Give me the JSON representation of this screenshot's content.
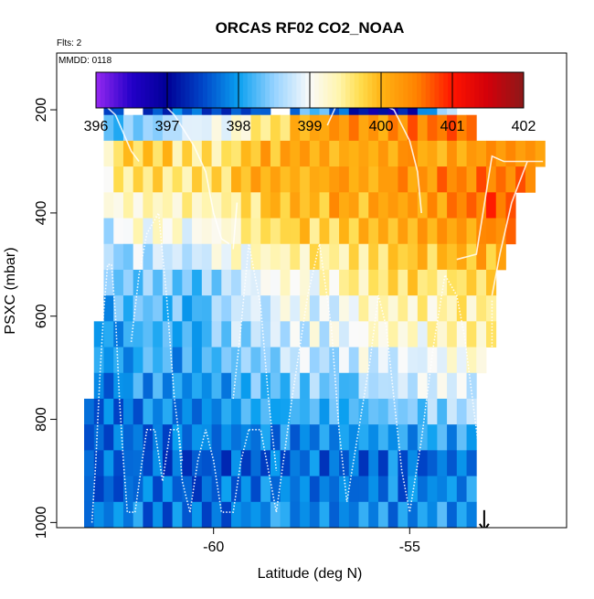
{
  "chart_data": {
    "type": "heatmap",
    "title": "ORCAS RF02 CO2_NOAA",
    "flights_note": "Flts: 2",
    "date_note": "MMDD: 0118",
    "xlabel": "Latitude (deg N)",
    "ylabel": "PSXC (mbar)",
    "xlim": [
      -64.0,
      -51.0
    ],
    "ylim": [
      1010,
      90
    ],
    "x_ticks": [
      -60,
      -55
    ],
    "x_tick_labels": [
      "-60",
      "-55"
    ],
    "y_ticks": [
      200,
      400,
      600,
      800,
      1000
    ],
    "y_tick_labels": [
      "200",
      "400",
      "600",
      "800",
      "1000"
    ],
    "colorbar": {
      "min": 396,
      "max": 402,
      "ticks": [
        396,
        397,
        398,
        399,
        400,
        401,
        402
      ],
      "tick_labels": [
        "396",
        "397",
        "398",
        "399",
        "400",
        "401",
        "402"
      ]
    },
    "grid": {
      "lat_start": -63.3,
      "lat_step": 0.25,
      "lat_end": -51.5,
      "pressure_levels": [
        185,
        235,
        285,
        335,
        385,
        435,
        485,
        535,
        585,
        635,
        685,
        735,
        785,
        835,
        885,
        935,
        985
      ],
      "level_bounds": [
        [
          -62.8,
          -53.7
        ],
        [
          -62.8,
          -53.2
        ],
        [
          -62.8,
          -51.6
        ],
        [
          -62.8,
          -51.9
        ],
        [
          -62.8,
          -52.2
        ],
        [
          -62.8,
          -52.3
        ],
        [
          -62.8,
          -52.6
        ],
        [
          -62.8,
          -52.9
        ],
        [
          -62.8,
          -52.9
        ],
        [
          -63.0,
          -52.9
        ],
        [
          -63.0,
          -53.0
        ],
        [
          -63.0,
          -53.2
        ],
        [
          -63.2,
          -53.2
        ],
        [
          -63.3,
          -53.3
        ],
        [
          -63.3,
          -53.3
        ],
        [
          -63.3,
          -53.3
        ],
        [
          -63.3,
          -53.3
        ]
      ],
      "values": [
        [
          397.9,
          397.1,
          397.6,
          397.5,
          397.4,
          398.3,
          397.0,
          397.0,
          398.9,
          400.1,
          399.6
        ],
        [
          397.9,
          398.3,
          398.6,
          398.9,
          399.4,
          400.0,
          400.3,
          400.2,
          400.6,
          400.5,
          400.4,
          400.3
        ],
        [
          398.5,
          399.6,
          399.8,
          399.6,
          399.6,
          400.0,
          400.1,
          400.1,
          400.1,
          400.1,
          400.1,
          400.3,
          400.3,
          400.4
        ],
        [
          398.4,
          399.5,
          399.7,
          399.6,
          399.8,
          400.0,
          400.1,
          400.1,
          400.2,
          400.3,
          400.4,
          400.5,
          400.6,
          400.7
        ],
        [
          398.2,
          399.3,
          399.4,
          399.3,
          399.5,
          399.7,
          399.9,
          400.1,
          400.1,
          400.3,
          400.3,
          400.6,
          400.7,
          400.9
        ],
        [
          398.0,
          399.0,
          399.2,
          399.0,
          399.2,
          399.5,
          399.8,
          399.8,
          399.9,
          400.0,
          400.1,
          400.3,
          400.6,
          400.8
        ],
        [
          397.9,
          398.6,
          398.8,
          398.6,
          399.0,
          399.3,
          399.5,
          399.4,
          399.7,
          399.8,
          399.9,
          400.0,
          400.1,
          400.2
        ],
        [
          397.9,
          398.3,
          398.6,
          398.3,
          398.7,
          399.0,
          399.2,
          399.1,
          399.5,
          399.6,
          399.6,
          399.7,
          399.9,
          400.1
        ],
        [
          397.9,
          398.2,
          398.4,
          398.1,
          398.6,
          398.9,
          399.0,
          398.8,
          399.3,
          399.4,
          399.4,
          399.5,
          399.7,
          400.0
        ],
        [
          397.9,
          398.1,
          398.3,
          398.1,
          398.5,
          398.7,
          398.9,
          398.8,
          399.1,
          399.2,
          399.2,
          399.4,
          399.6,
          399.8
        ],
        [
          397.8,
          398.0,
          398.2,
          398.0,
          398.3,
          398.5,
          398.7,
          398.6,
          398.9,
          399.0,
          399.0,
          399.2,
          399.4,
          399.6
        ],
        [
          397.7,
          397.9,
          398.0,
          397.9,
          398.1,
          398.3,
          398.4,
          398.4,
          398.6,
          398.7,
          398.8,
          398.9,
          399.0,
          399.3
        ],
        [
          397.7,
          397.8,
          397.9,
          397.8,
          398.0,
          398.1,
          398.2,
          398.2,
          398.3,
          398.4,
          398.5,
          398.6,
          398.7,
          398.9
        ],
        [
          397.6,
          397.7,
          397.7,
          397.7,
          397.8,
          397.9,
          397.9,
          397.9,
          398.0,
          398.0,
          398.1,
          398.1,
          398.2,
          398.4
        ],
        [
          397.6,
          397.7,
          397.6,
          397.6,
          397.6,
          397.7,
          397.7,
          397.7,
          397.7,
          397.8,
          397.8,
          397.8,
          397.9,
          398.0
        ],
        [
          397.6,
          397.7,
          397.7,
          397.6,
          397.7,
          397.8,
          397.8,
          397.7,
          397.8,
          397.8,
          397.9,
          397.9,
          397.9,
          398.0
        ],
        [
          397.7,
          397.8,
          397.8,
          397.7,
          397.8,
          397.9,
          397.9,
          397.8,
          397.9,
          397.9,
          398.0,
          398.0,
          398.0,
          398.0
        ]
      ]
    },
    "gaps": [
      [
        -62.3,
        -61.8,
        160,
        210
      ],
      [
        -58.5,
        -58.1,
        160,
        210
      ]
    ],
    "flight_track_solid": [
      [
        [
          -63.0,
          175
        ],
        [
          -62.5,
          210
        ],
        [
          -62.1,
          280
        ],
        [
          -61.9,
          300
        ]
      ],
      [
        [
          -62.2,
          175
        ],
        [
          -61.8,
          180
        ],
        [
          -61.4,
          180
        ],
        [
          -61.0,
          210
        ],
        [
          -60.5,
          270
        ],
        [
          -60.2,
          320
        ],
        [
          -60.0,
          400
        ],
        [
          -59.8,
          450
        ],
        [
          -59.6,
          460
        ]
      ],
      [
        [
          -59.5,
          470
        ],
        [
          -59.4,
          380
        ]
      ],
      [
        [
          -57.1,
          230
        ],
        [
          -56.8,
          180
        ],
        [
          -56.0,
          180
        ],
        [
          -55.4,
          200
        ],
        [
          -55.0,
          260
        ],
        [
          -54.8,
          320
        ],
        [
          -54.7,
          400
        ]
      ],
      [
        [
          -53.8,
          490
        ],
        [
          -53.3,
          480
        ],
        [
          -52.9,
          290
        ],
        [
          -52.6,
          300
        ],
        [
          -51.6,
          300
        ],
        [
          -52.0,
          300
        ],
        [
          -52.4,
          380
        ],
        [
          -52.7,
          480
        ],
        [
          -52.9,
          560
        ]
      ]
    ],
    "flight_track_dotted": [
      [
        [
          -63.1,
          1000
        ],
        [
          -63.0,
          880
        ],
        [
          -62.9,
          720
        ],
        [
          -62.8,
          590
        ],
        [
          -62.7,
          500
        ],
        [
          -62.6,
          500
        ],
        [
          -62.5,
          600
        ],
        [
          -62.4,
          760
        ],
        [
          -62.3,
          880
        ],
        [
          -62.2,
          980
        ],
        [
          -62.0,
          980
        ]
      ],
      [
        [
          -62.0,
          980
        ],
        [
          -61.8,
          870
        ],
        [
          -61.7,
          820
        ],
        [
          -61.5,
          820
        ],
        [
          -61.3,
          920
        ],
        [
          -61.1,
          820
        ],
        [
          -60.9,
          820
        ],
        [
          -60.8,
          920
        ],
        [
          -60.6,
          980
        ]
      ],
      [
        [
          -62.1,
          650
        ],
        [
          -61.9,
          520
        ],
        [
          -61.7,
          440
        ],
        [
          -61.4,
          400
        ],
        [
          -61.2,
          560
        ],
        [
          -61.0,
          760
        ],
        [
          -60.8,
          880
        ]
      ],
      [
        [
          -60.6,
          980
        ],
        [
          -60.4,
          880
        ],
        [
          -60.2,
          820
        ],
        [
          -60.0,
          880
        ],
        [
          -59.8,
          980
        ],
        [
          -59.5,
          980
        ],
        [
          -59.3,
          880
        ],
        [
          -59.1,
          820
        ]
      ],
      [
        [
          -59.5,
          760
        ],
        [
          -59.3,
          620
        ],
        [
          -59.1,
          460
        ],
        [
          -58.8,
          580
        ],
        [
          -58.6,
          760
        ],
        [
          -58.4,
          900
        ]
      ],
      [
        [
          -59.1,
          820
        ],
        [
          -58.8,
          820
        ],
        [
          -58.6,
          900
        ],
        [
          -58.4,
          980
        ],
        [
          -58.0,
          760
        ],
        [
          -57.6,
          560
        ],
        [
          -57.3,
          460
        ],
        [
          -57.0,
          620
        ],
        [
          -56.8,
          820
        ],
        [
          -56.6,
          960
        ]
      ],
      [
        [
          -56.6,
          960
        ],
        [
          -56.3,
          820
        ],
        [
          -56.0,
          680
        ],
        [
          -55.8,
          560
        ],
        [
          -55.6,
          620
        ],
        [
          -55.4,
          760
        ],
        [
          -55.2,
          900
        ],
        [
          -55.0,
          980
        ],
        [
          -54.7,
          840
        ],
        [
          -54.4,
          660
        ],
        [
          -54.1,
          520
        ],
        [
          -53.8,
          560
        ],
        [
          -53.6,
          640
        ],
        [
          -53.4,
          760
        ],
        [
          -53.2,
          880
        ],
        [
          -53.1,
          960
        ]
      ],
      [
        [
          -52.9,
          570
        ],
        [
          -52.9,
          700
        ],
        [
          -53.0,
          760
        ]
      ]
    ],
    "marker": {
      "lat": -53.1,
      "pressure": 1015
    }
  }
}
